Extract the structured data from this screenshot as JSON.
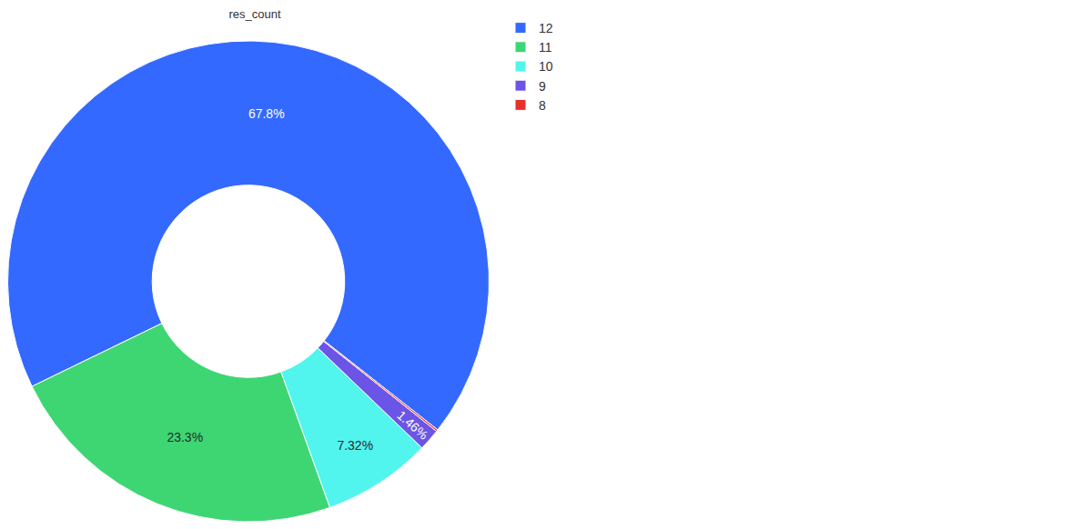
{
  "chart_data": {
    "type": "donut",
    "title": "res_count",
    "categories": [
      "12",
      "11",
      "10",
      "9",
      "8"
    ],
    "values": [
      67.8,
      23.3,
      7.32,
      1.46,
      0.12
    ],
    "value_labels": [
      "67.8%",
      "23.3%",
      "7.32%",
      "1.46%",
      null
    ],
    "colors": [
      "#3469ff",
      "#3dd673",
      "#52f5ee",
      "#6b55e6",
      "#e8302b"
    ],
    "data_labels": true,
    "legend": "top-right"
  }
}
